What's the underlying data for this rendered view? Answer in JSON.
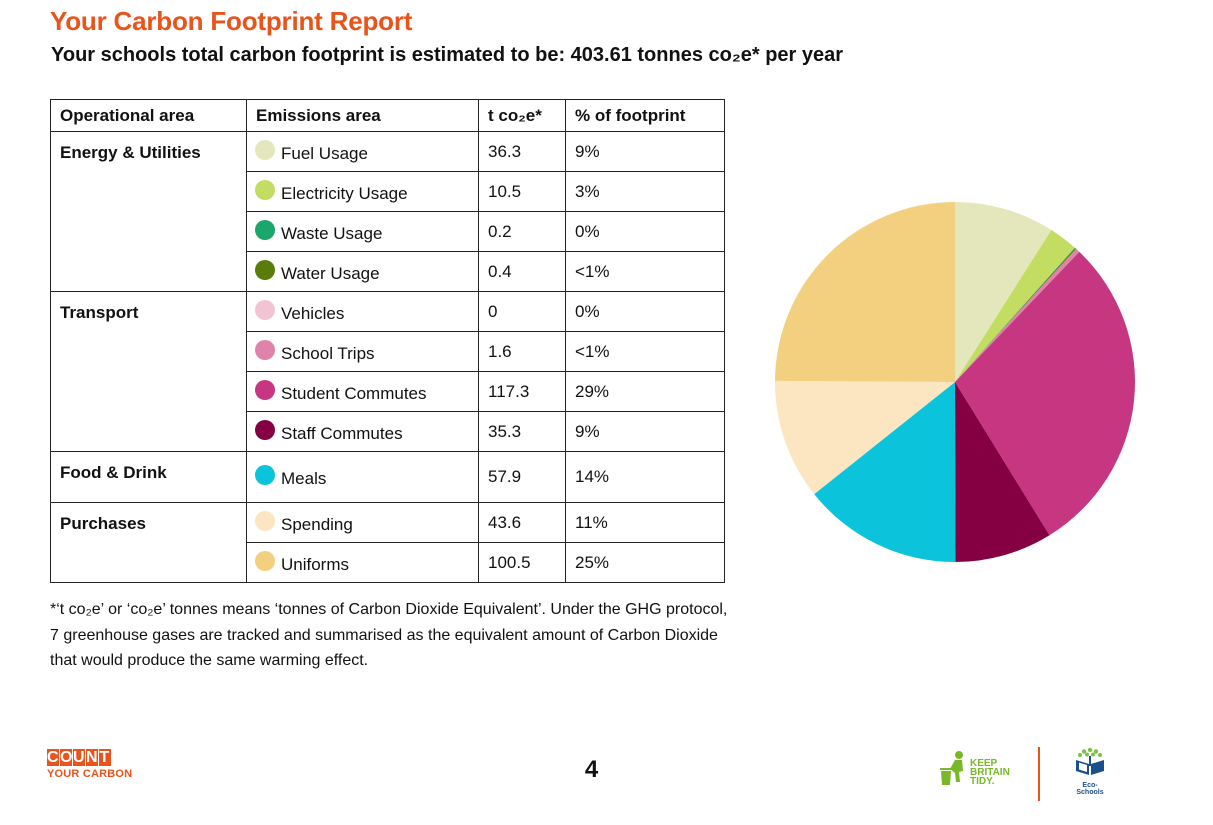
{
  "title": "Your Carbon Footprint Report",
  "subtitle": "Your schools total carbon footprint is estimated to be: 403.61 tonnes co₂e* per year",
  "table": {
    "headers": [
      "Operational area",
      "Emissions area",
      "t co₂e*",
      "% of footprint"
    ],
    "groups": [
      {
        "name": "Energy & Utilities",
        "rows": [
          {
            "area": "Fuel Usage",
            "value": "36.3",
            "percent": "9%",
            "color": "#e4e7bc"
          },
          {
            "area": "Electricity Usage",
            "value": "10.5",
            "percent": "3%",
            "color": "#c3dd62"
          },
          {
            "area": "Waste Usage",
            "value": "0.2",
            "percent": "0%",
            "color": "#1ba66a"
          },
          {
            "area": "Water Usage",
            "value": "0.4",
            "percent": "<1%",
            "color": "#5a7c0a"
          }
        ]
      },
      {
        "name": "Transport",
        "rows": [
          {
            "area": "Vehicles",
            "value": "0",
            "percent": "0%",
            "color": "#f2c3d3"
          },
          {
            "area": "School Trips",
            "value": "1.6",
            "percent": "<1%",
            "color": "#e083aa"
          },
          {
            "area": "Student Commutes",
            "value": "117.3",
            "percent": "29%",
            "color": "#c73680"
          },
          {
            "area": "Staff Commutes",
            "value": "35.3",
            "percent": "9%",
            "color": "#850042"
          }
        ]
      },
      {
        "name": "Food & Drink",
        "rows": [
          {
            "area": "Meals",
            "value": "57.9",
            "percent": "14%",
            "color": "#0bc3db"
          }
        ]
      },
      {
        "name": "Purchases",
        "rows": [
          {
            "area": "Spending",
            "value": "43.6",
            "percent": "11%",
            "color": "#fbe6c1"
          },
          {
            "area": "Uniforms",
            "value": "100.5",
            "percent": "25%",
            "color": "#f3d07f"
          }
        ]
      }
    ]
  },
  "footnote": "*‘t co₂e’ or ‘co₂e’ tonnes means ‘tonnes of Carbon Dioxide Equivalent’. Under the GHG protocol, 7 greenhouse gases are tracked and summarised as the equivalent amount of Carbon Dioxide that would produce the same warming effect.",
  "page_number": "4",
  "logos": {
    "count_line1": "COUNT",
    "count_line2": "YOUR CARBON",
    "kbt_lines": [
      "KEEP",
      "BRITAIN",
      "TIDY."
    ],
    "eco": "Eco-Schools"
  },
  "chart_data": {
    "type": "pie",
    "start_angle_deg": 0,
    "direction": "clockwise",
    "labels": [
      "Fuel Usage",
      "Electricity Usage",
      "Waste Usage",
      "Water Usage",
      "Vehicles",
      "School Trips",
      "Student Commutes",
      "Staff Commutes",
      "Meals",
      "Spending",
      "Uniforms"
    ],
    "values": [
      36.3,
      10.5,
      0.2,
      0.4,
      0,
      1.6,
      117.3,
      35.3,
      57.9,
      43.6,
      100.5
    ],
    "colors": [
      "#e4e7bc",
      "#c3dd62",
      "#1ba66a",
      "#5a7c0a",
      "#f2c3d3",
      "#e083aa",
      "#c73680",
      "#850042",
      "#0bc3db",
      "#fbe6c1",
      "#f3d07f"
    ],
    "legend": "table"
  }
}
